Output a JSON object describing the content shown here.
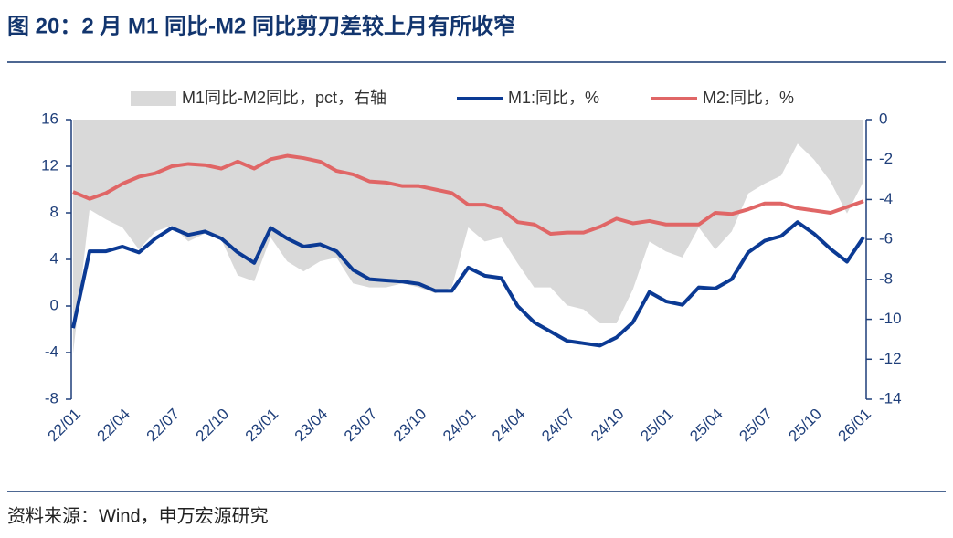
{
  "chart_data": {
    "type": "combo",
    "title": "图 20：2 月 M1 同比-M2 同比剪刀差较上月有所收窄",
    "source": "资料来源：Wind，申万宏源研究",
    "categories": [
      "22/01",
      null,
      null,
      "22/04",
      null,
      null,
      "22/07",
      null,
      null,
      "22/10",
      null,
      null,
      "23/01",
      null,
      null,
      "23/04",
      null,
      null,
      "23/07",
      null,
      null,
      "23/10",
      null,
      null,
      "24/01",
      null,
      null,
      "24/04",
      null,
      null,
      "24/07",
      null,
      null,
      "24/10",
      null,
      null,
      "25/01",
      null,
      null,
      "25/04",
      null,
      null,
      "25/07",
      null,
      null,
      "25/10",
      null,
      null,
      "26/01"
    ],
    "ylim": [
      -8,
      16
    ],
    "yticks": [
      -8,
      -4,
      0,
      4,
      8,
      12,
      16
    ],
    "y2lim": [
      -14,
      0
    ],
    "y2ticks": [
      -14,
      -12,
      -10,
      -8,
      -6,
      -4,
      -2,
      0
    ],
    "series": [
      {
        "name": "M1同比-M2同比，pct，右轴",
        "type": "area",
        "axis": "y2",
        "color": "#d9d9d9",
        "values": [
          -11.7,
          -4.5,
          -5.0,
          -5.4,
          -6.5,
          -5.6,
          -5.3,
          -6.1,
          -5.7,
          -6.0,
          -7.8,
          -8.1,
          -5.9,
          -7.1,
          -7.6,
          -7.1,
          -6.9,
          -8.2,
          -8.4,
          -8.4,
          -8.2,
          -8.4,
          -8.7,
          -8.4,
          -5.4,
          -6.1,
          -5.9,
          -7.2,
          -8.4,
          -8.4,
          -9.3,
          -9.5,
          -10.2,
          -10.2,
          -8.5,
          -6.1,
          -6.6,
          -6.9,
          -5.4,
          -6.5,
          -5.6,
          -3.7,
          -3.2,
          -2.8,
          -1.2,
          -2.0,
          -3.1,
          -4.7,
          -3.1
        ]
      },
      {
        "name": "M1:同比，%",
        "type": "line",
        "color": "#0b3a94",
        "values": [
          -1.9,
          4.7,
          4.7,
          5.1,
          4.6,
          5.8,
          6.7,
          6.1,
          6.4,
          5.8,
          4.6,
          3.7,
          6.7,
          5.8,
          5.1,
          5.3,
          4.7,
          3.1,
          2.3,
          2.2,
          2.1,
          1.9,
          1.3,
          1.3,
          3.3,
          2.6,
          2.4,
          0,
          -1.4,
          -2.2,
          -3.0,
          -3.2,
          -3.4,
          -2.7,
          -1.4,
          1.2,
          0.4,
          0.1,
          1.6,
          1.5,
          2.3,
          4.6,
          5.6,
          6.0,
          7.2,
          6.2,
          4.9,
          3.8,
          5.9
        ]
      },
      {
        "name": "M2:同比，%",
        "type": "line",
        "color": "#e06666",
        "values": [
          9.8,
          9.2,
          9.7,
          10.5,
          11.1,
          11.4,
          12.0,
          12.2,
          12.1,
          11.8,
          12.4,
          11.8,
          12.6,
          12.9,
          12.7,
          12.4,
          11.6,
          11.3,
          10.7,
          10.6,
          10.3,
          10.3,
          10.0,
          9.7,
          8.7,
          8.7,
          8.3,
          7.2,
          7.0,
          6.2,
          6.3,
          6.3,
          6.8,
          7.5,
          7.1,
          7.3,
          7.0,
          7.0,
          7.0,
          8.0,
          7.9,
          8.3,
          8.8,
          8.8,
          8.4,
          8.2,
          8.0,
          8.5,
          9.0
        ]
      }
    ]
  }
}
